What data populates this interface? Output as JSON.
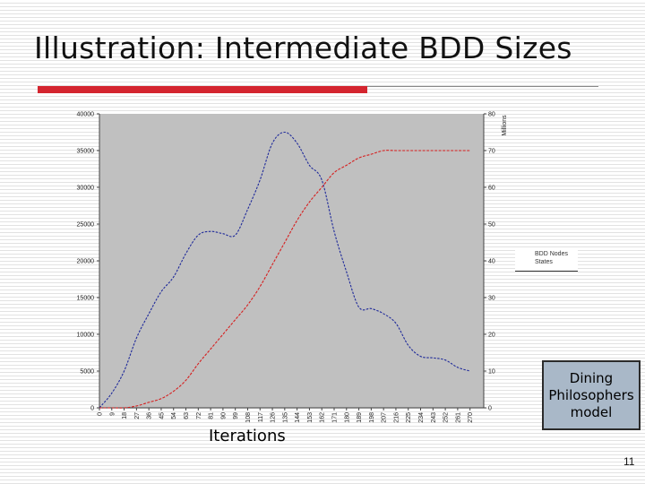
{
  "slide": {
    "title": "Illustration: Intermediate BDD Sizes",
    "page_number": "11",
    "callout_lines": [
      "Dining",
      "Philosophers",
      "model"
    ],
    "accent_color": "#d4252f"
  },
  "chart_data": {
    "type": "line",
    "title": "",
    "xlabel": "Iterations",
    "ylabel": "",
    "y2label": "Millions",
    "xlim": [
      0,
      280
    ],
    "ylim": [
      0,
      40000
    ],
    "y2lim": [
      0,
      80
    ],
    "x_tick_labels": [
      "0",
      "9",
      "18",
      "27",
      "36",
      "45",
      "54",
      "63",
      "72",
      "81",
      "90",
      "99",
      "108",
      "117",
      "126",
      "135",
      "144",
      "153",
      "162",
      "171",
      "180",
      "189",
      "198",
      "207",
      "216",
      "225",
      "234",
      "243",
      "252",
      "261",
      "270"
    ],
    "y_tick_labels": [
      "0",
      "5000",
      "10000",
      "15000",
      "20000",
      "25000",
      "30000",
      "35000",
      "40000"
    ],
    "y2_tick_labels": [
      "0",
      "10",
      "20",
      "30",
      "40",
      "50",
      "60",
      "70",
      "80"
    ],
    "grid": false,
    "legend_position": "right",
    "background_color": "#c0c0c0",
    "series": [
      {
        "name": "BDD Nodes",
        "axis": "left",
        "color": "#1f2a9a",
        "x": [
          0,
          9,
          18,
          27,
          36,
          45,
          54,
          63,
          72,
          81,
          90,
          99,
          108,
          117,
          126,
          135,
          144,
          153,
          162,
          171,
          180,
          189,
          198,
          207,
          216,
          225,
          234,
          243,
          252,
          261,
          270
        ],
        "y": [
          0,
          2000,
          5000,
          9500,
          12800,
          15800,
          17800,
          21000,
          23500,
          24000,
          23700,
          23500,
          27000,
          31000,
          36000,
          37500,
          36000,
          33000,
          31000,
          24000,
          18500,
          13700,
          13500,
          12800,
          11500,
          8500,
          7000,
          6800,
          6500,
          5500,
          5000
        ]
      },
      {
        "name": "States",
        "axis": "right",
        "color": "#d61f1f",
        "x": [
          0,
          9,
          18,
          27,
          36,
          45,
          54,
          63,
          72,
          81,
          90,
          99,
          108,
          117,
          126,
          135,
          144,
          153,
          162,
          171,
          180,
          189,
          198,
          207,
          216,
          225,
          234,
          243,
          252,
          261,
          270
        ],
        "y": [
          0,
          0,
          0,
          0.5,
          1.5,
          2.5,
          4.5,
          7.5,
          12,
          16,
          20,
          24,
          28,
          33,
          39,
          45,
          51,
          56,
          60,
          64,
          66,
          68,
          69,
          70,
          70,
          70,
          70,
          70,
          70,
          70,
          70
        ]
      }
    ]
  }
}
